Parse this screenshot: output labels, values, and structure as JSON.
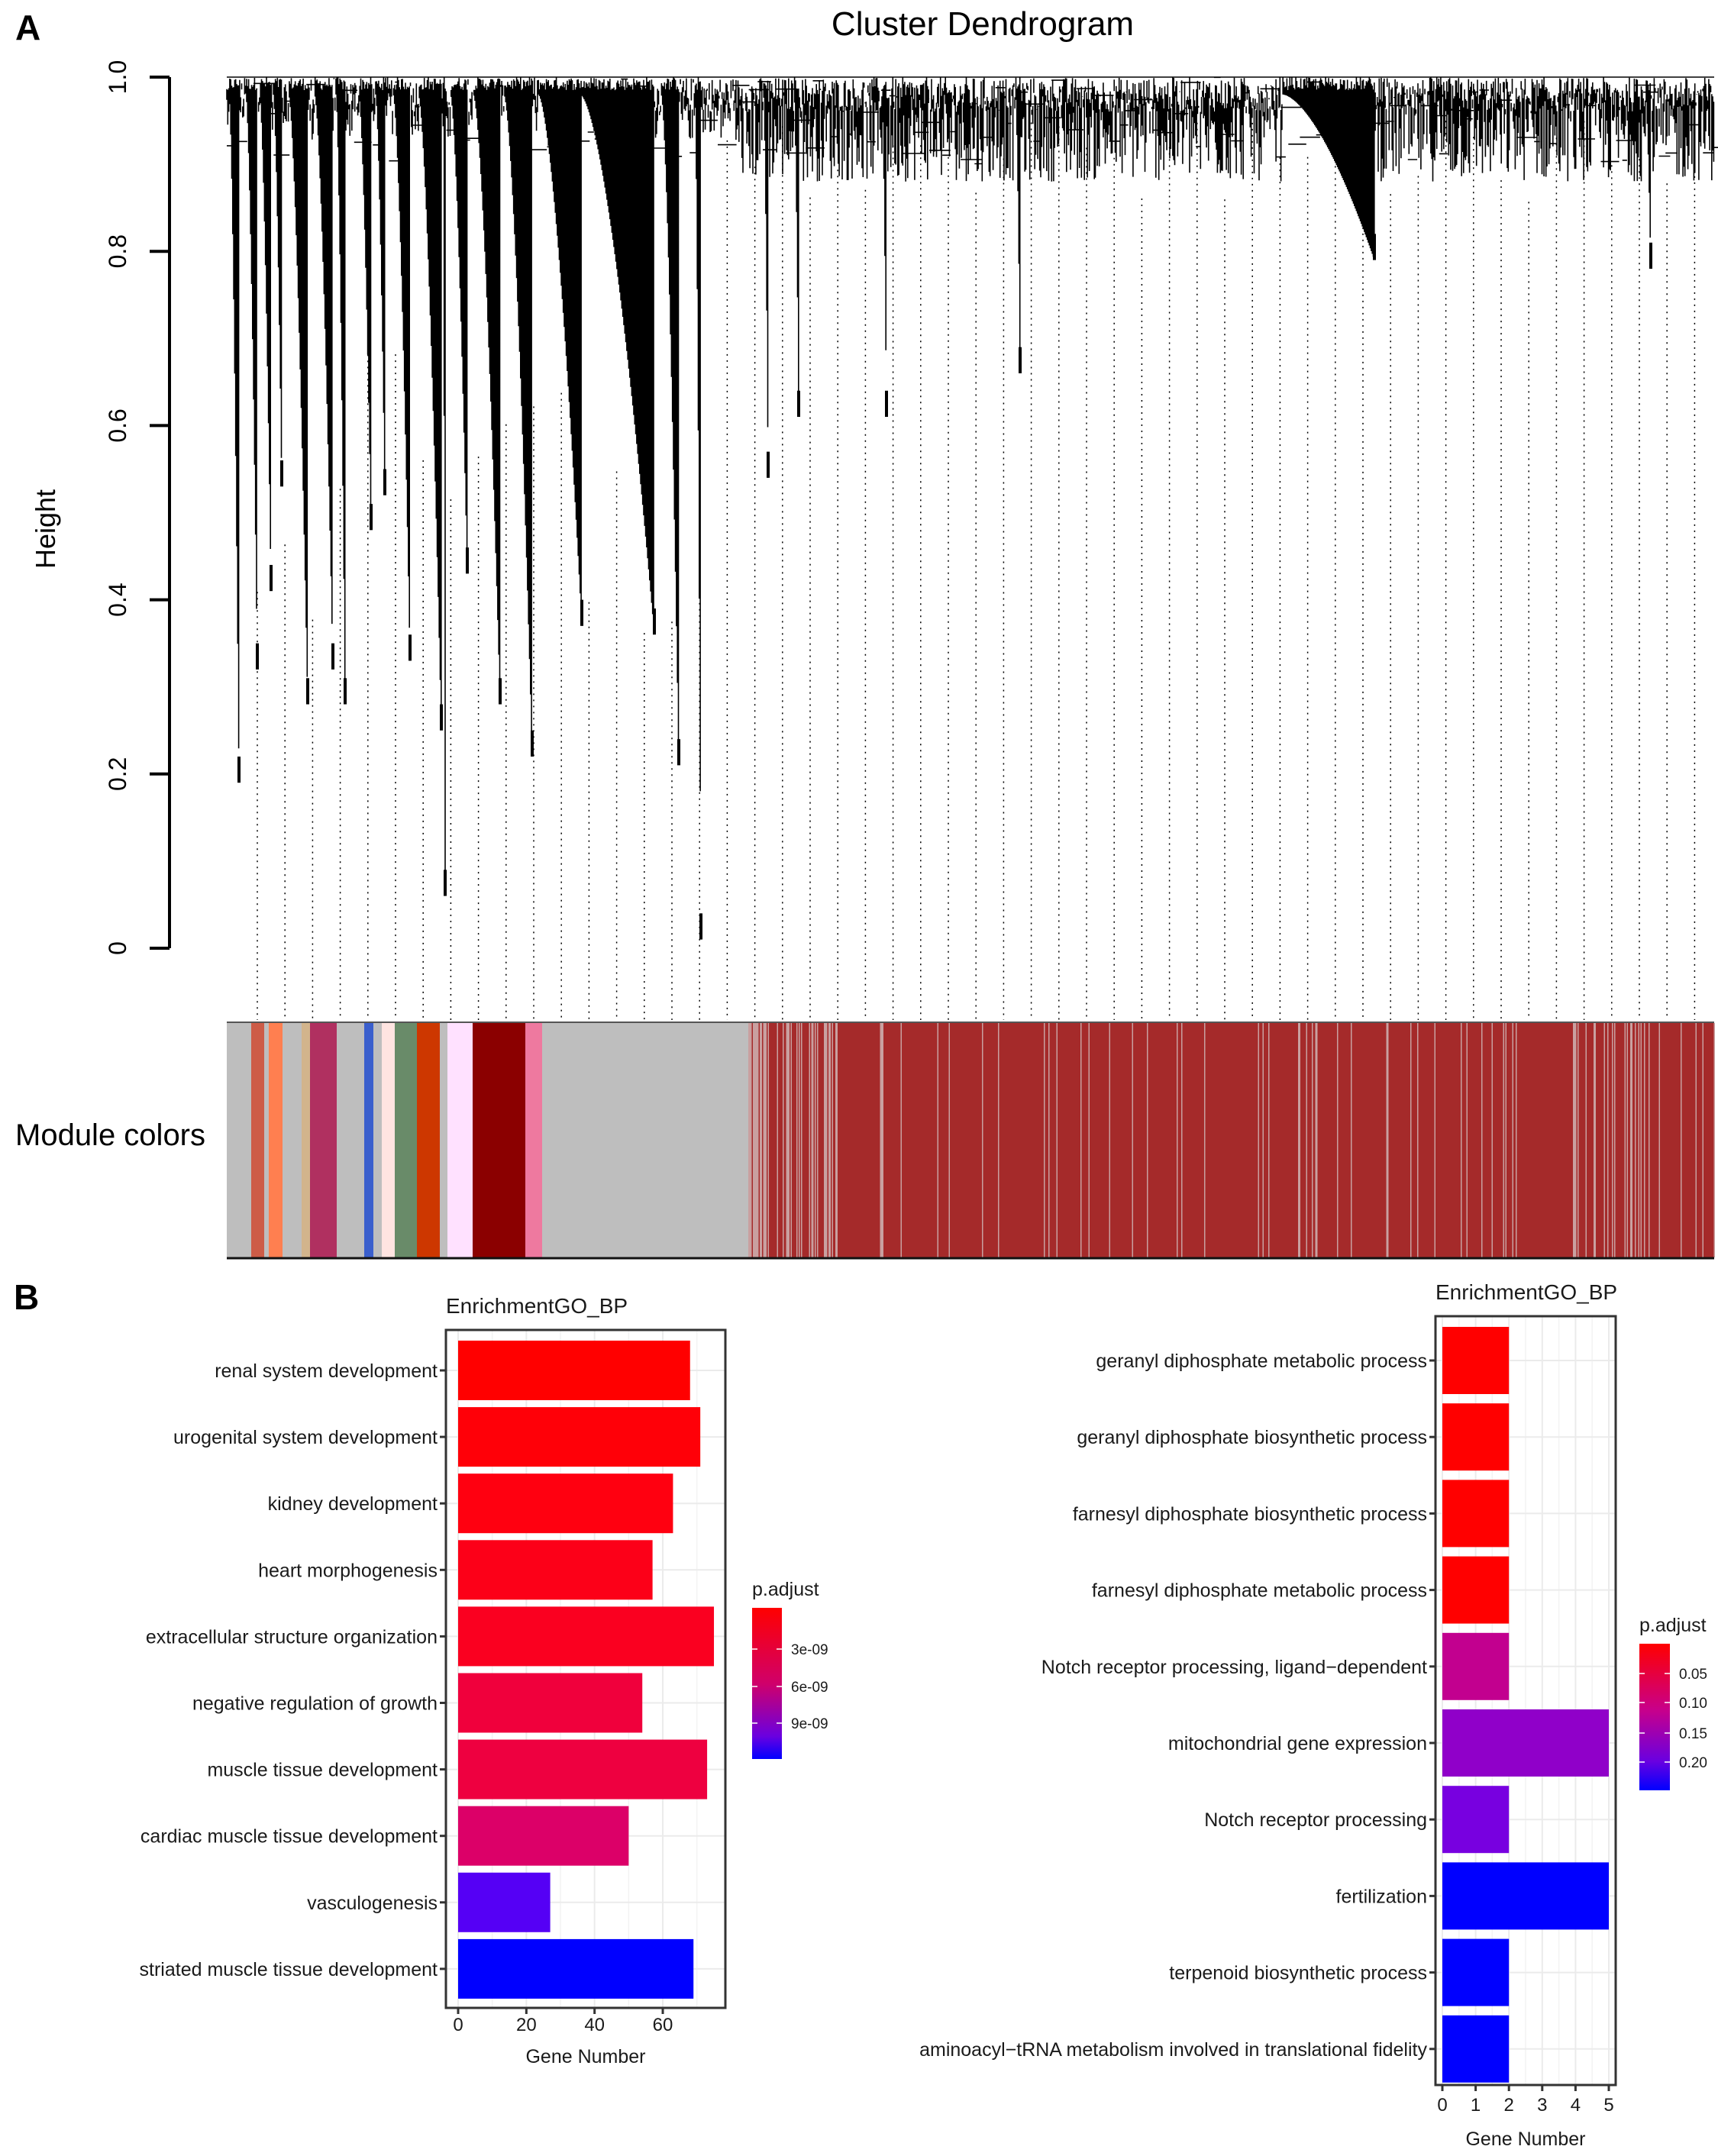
{
  "panels": {
    "a": "A",
    "b": "B"
  },
  "chart_data": [
    {
      "type": "dendrogram",
      "title": "Cluster Dendrogram",
      "ylabel": "Height",
      "yticks": [
        "0",
        "0.2",
        "0.4",
        "0.6",
        "0.8",
        "1.0"
      ],
      "ylim": [
        0,
        1.0
      ],
      "module_colors_label": "Module colors",
      "module_colors": [
        "#bebebe",
        "#cd5c47",
        "#ff7f50",
        "#d2b48c",
        "#b03060",
        "#3a5fcd",
        "#ffe4e1",
        "#698b69",
        "#cd3700",
        "#ffe1ff",
        "#8b0000",
        "#ee799f",
        "#a52a2a"
      ]
    },
    {
      "type": "bar",
      "orientation": "horizontal",
      "title": "EnrichmentGO_BP",
      "xlabel": "Gene Number",
      "xticks": [
        "0",
        "20",
        "40",
        "60"
      ],
      "xlim": [
        0,
        78
      ],
      "categories": [
        "renal system development",
        "urogenital system development",
        "kidney development",
        "heart morphogenesis",
        "extracellular structure organization",
        "negative regulation of growth",
        "muscle tissue development",
        "cardiac muscle tissue development",
        "vasculogenesis",
        "striated muscle tissue development"
      ],
      "values": [
        68,
        71,
        63,
        57,
        75,
        54,
        73,
        50,
        27,
        69
      ],
      "colors": [
        "#ff0000",
        "#ff0008",
        "#ff0010",
        "#fc0018",
        "#fa0020",
        "#f0003c",
        "#ee0040",
        "#dc0068",
        "#5500f5",
        "#0000ff"
      ],
      "legend": {
        "title": "p.adjust",
        "ticks": [
          "3e-09",
          "6e-09",
          "9e-09"
        ],
        "placement": "right"
      }
    },
    {
      "type": "bar",
      "orientation": "horizontal",
      "title": "EnrichmentGO_BP",
      "xlabel": "Gene Number",
      "xticks": [
        "0",
        "1",
        "2",
        "3",
        "4",
        "5"
      ],
      "xlim": [
        0,
        5.2
      ],
      "categories": [
        "geranyl diphosphate metabolic process",
        "geranyl diphosphate biosynthetic process",
        "farnesyl diphosphate biosynthetic process",
        "farnesyl diphosphate metabolic process",
        "Notch receptor processing, ligand−dependent",
        "mitochondrial gene expression",
        "Notch receptor processing",
        "fertilization",
        "terpenoid biosynthetic process",
        "aminoacyl−tRNA metabolism involved in translational fidelity"
      ],
      "values": [
        2,
        2,
        2,
        2,
        2,
        5,
        2,
        5,
        2,
        2
      ],
      "colors": [
        "#ff0000",
        "#ff0000",
        "#ff0000",
        "#ff0000",
        "#c2008f",
        "#9000c9",
        "#7800e0",
        "#0000ff",
        "#0000ff",
        "#0000ff"
      ],
      "legend": {
        "title": "p.adjust",
        "ticks": [
          "0.05",
          "0.10",
          "0.15",
          "0.20"
        ],
        "placement": "right"
      }
    }
  ]
}
